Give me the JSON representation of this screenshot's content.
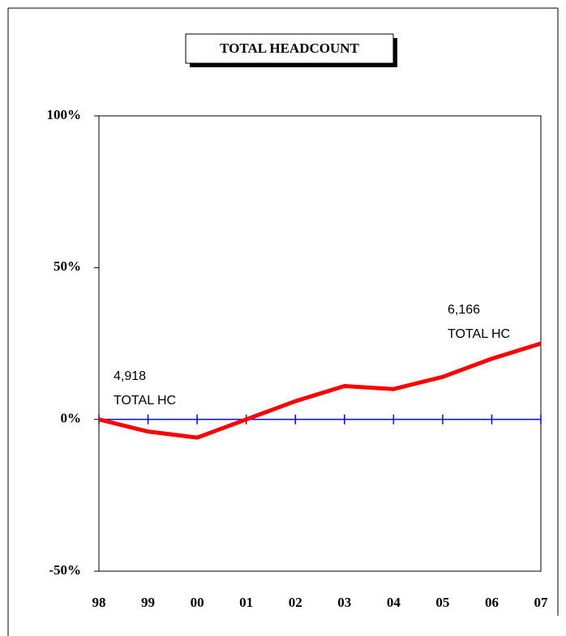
{
  "chart_data": {
    "type": "line",
    "title": "TOTAL HEADCOUNT",
    "categories": [
      "98",
      "99",
      "00",
      "01",
      "02",
      "03",
      "04",
      "05",
      "06",
      "07"
    ],
    "series": [
      {
        "name": "Total headcount",
        "color": "#ff0000",
        "values": [
          0,
          -4,
          -6,
          0,
          6,
          11,
          10,
          14,
          20,
          25
        ]
      }
    ],
    "ylim": [
      -50,
      100
    ],
    "yticks": [
      {
        "value": -50,
        "label": "-50%"
      },
      {
        "value": 0,
        "label": "0%"
      },
      {
        "value": 50,
        "label": "50%"
      },
      {
        "value": 100,
        "label": "100%"
      }
    ],
    "annotations": [
      {
        "lines": [
          "4,918",
          "TOTAL HC"
        ]
      },
      {
        "lines": [
          "6,166",
          "TOTAL HC"
        ]
      }
    ]
  }
}
